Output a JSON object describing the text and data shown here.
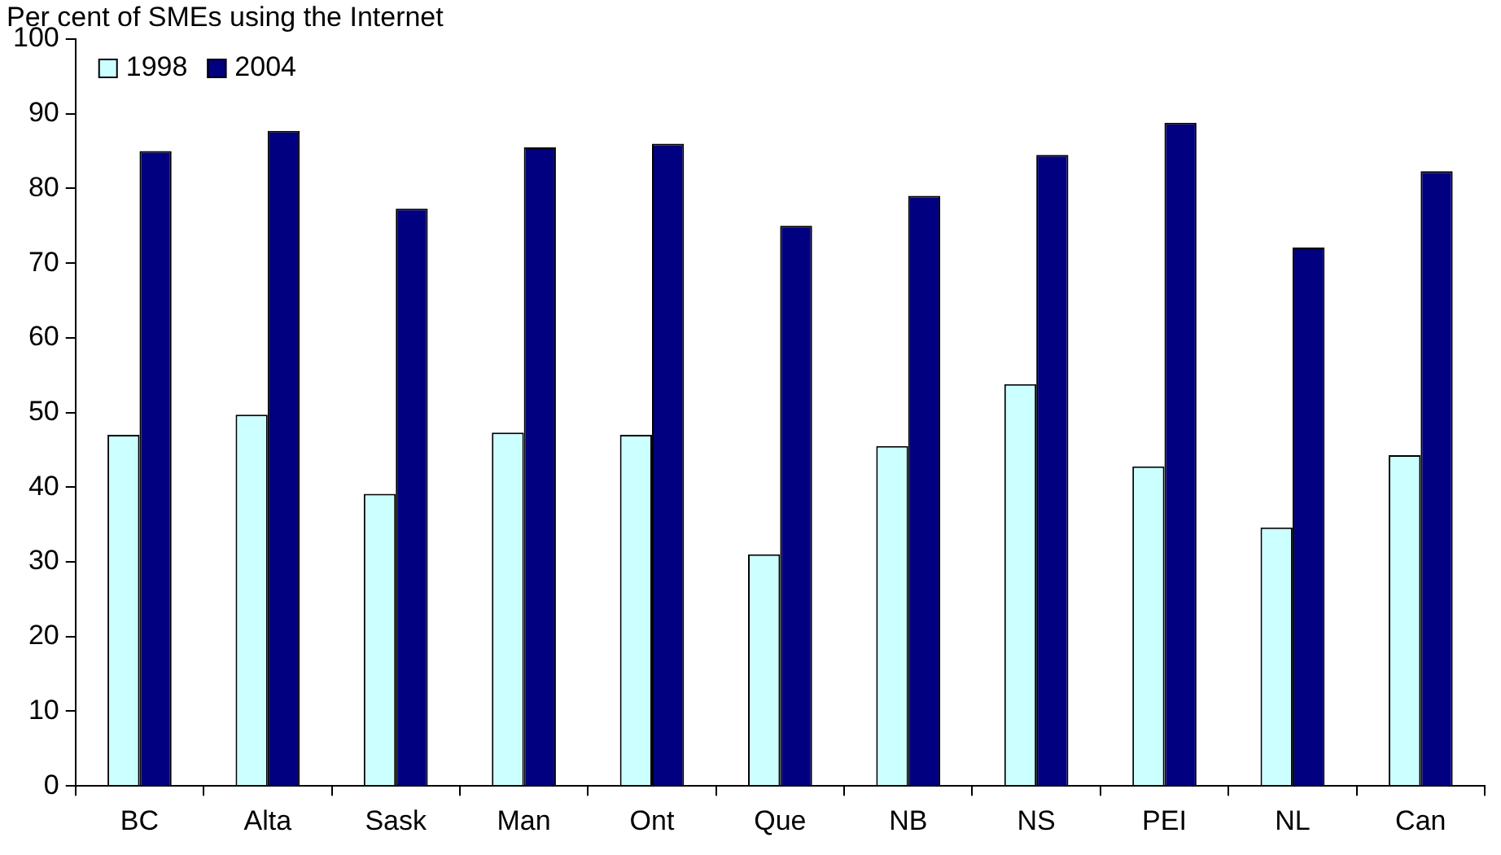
{
  "chart_data": {
    "type": "bar",
    "ylabel": "Per cent of SMEs using the Internet",
    "categories": [
      "BC",
      "Alta",
      "Sask",
      "Man",
      "Ont",
      "Que",
      "NB",
      "NS",
      "PEI",
      "NL",
      "Can"
    ],
    "series": [
      {
        "name": "1998",
        "color": "#ccffff",
        "values": [
          47,
          49.7,
          39.1,
          47.3,
          47,
          31,
          45.5,
          53.8,
          42.8,
          34.6,
          44.3
        ]
      },
      {
        "name": "2004",
        "color": "#000080",
        "values": [
          85,
          87.7,
          77.3,
          85.5,
          86,
          75,
          79,
          84.5,
          88.8,
          72.1,
          82.3
        ]
      }
    ],
    "ylim": [
      0,
      100
    ],
    "yticks": [
      0,
      10,
      20,
      30,
      40,
      50,
      60,
      70,
      80,
      90,
      100
    ],
    "grid": false,
    "legend": "top left"
  }
}
